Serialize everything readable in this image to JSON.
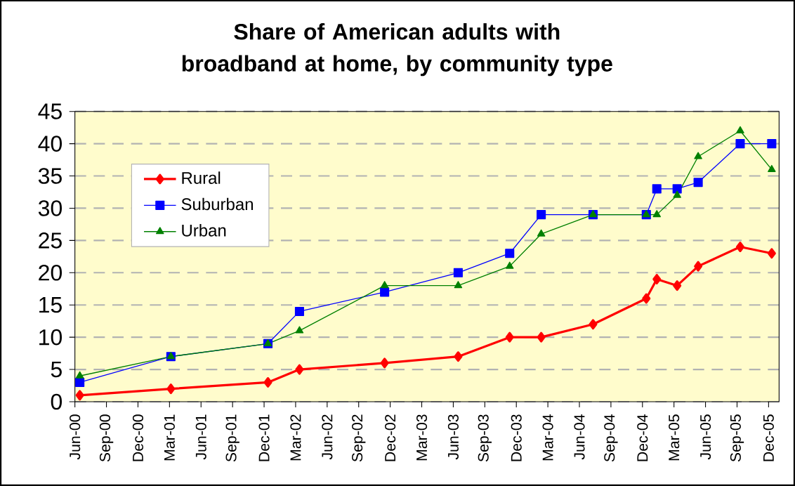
{
  "chart_data": {
    "type": "line",
    "title": "Share of American adults with broadband at home, by community type",
    "x": [
      "2000-06-15",
      "2001-03-05",
      "2001-12-12",
      "2002-03-12",
      "2002-11-15",
      "2003-06-15",
      "2003-11-12",
      "2004-02-12",
      "2004-07-10",
      "2004-12-12",
      "2005-01-12",
      "2005-03-10",
      "2005-05-10",
      "2005-09-10",
      "2005-12-10"
    ],
    "series": [
      {
        "name": "Rural",
        "color": "#ff0000",
        "marker": "diamond",
        "values": [
          1,
          2,
          3,
          5,
          6,
          7,
          10,
          10,
          12,
          16,
          19,
          18,
          21,
          24,
          23
        ]
      },
      {
        "name": "Suburban",
        "color": "#0000ff",
        "marker": "square",
        "values": [
          3,
          7,
          9,
          14,
          17,
          20,
          23,
          29,
          29,
          29,
          33,
          33,
          34,
          40,
          40
        ]
      },
      {
        "name": "Urban",
        "color": "#008000",
        "marker": "triangle",
        "values": [
          4,
          7,
          9,
          11,
          18,
          18,
          21,
          26,
          29,
          29,
          29,
          32,
          38,
          42,
          36
        ]
      }
    ],
    "xlim": [
      "2000-06",
      "2006-01"
    ],
    "xticks": [
      {
        "value": "2000-06",
        "label": "Jun-00"
      },
      {
        "value": "2000-09",
        "label": "Sep-00"
      },
      {
        "value": "2000-12",
        "label": "Dec-00"
      },
      {
        "value": "2001-03",
        "label": "Mar-01"
      },
      {
        "value": "2001-06",
        "label": "Jun-01"
      },
      {
        "value": "2001-09",
        "label": "Sep-01"
      },
      {
        "value": "2001-12",
        "label": "Dec-01"
      },
      {
        "value": "2002-03",
        "label": "Mar-02"
      },
      {
        "value": "2002-06",
        "label": "Jun-02"
      },
      {
        "value": "2002-09",
        "label": "Sep-02"
      },
      {
        "value": "2002-12",
        "label": "Dec-02"
      },
      {
        "value": "2003-03",
        "label": "Mar-03"
      },
      {
        "value": "2003-06",
        "label": "Jun-03"
      },
      {
        "value": "2003-09",
        "label": "Sep-03"
      },
      {
        "value": "2003-12",
        "label": "Dec-03"
      },
      {
        "value": "2004-03",
        "label": "Mar-04"
      },
      {
        "value": "2004-06",
        "label": "Jun-04"
      },
      {
        "value": "2004-09",
        "label": "Sep-04"
      },
      {
        "value": "2004-12",
        "label": "Dec-04"
      },
      {
        "value": "2005-03",
        "label": "Mar-05"
      },
      {
        "value": "2005-06",
        "label": "Jun-05"
      },
      {
        "value": "2005-09",
        "label": "Sep-05"
      },
      {
        "value": "2005-12",
        "label": "Dec-05"
      }
    ],
    "ylim": [
      0,
      45
    ],
    "yticks": [
      0,
      5,
      10,
      15,
      20,
      25,
      30,
      35,
      40,
      45
    ],
    "grid": "y",
    "legend": "top left",
    "line_style": "solid"
  }
}
